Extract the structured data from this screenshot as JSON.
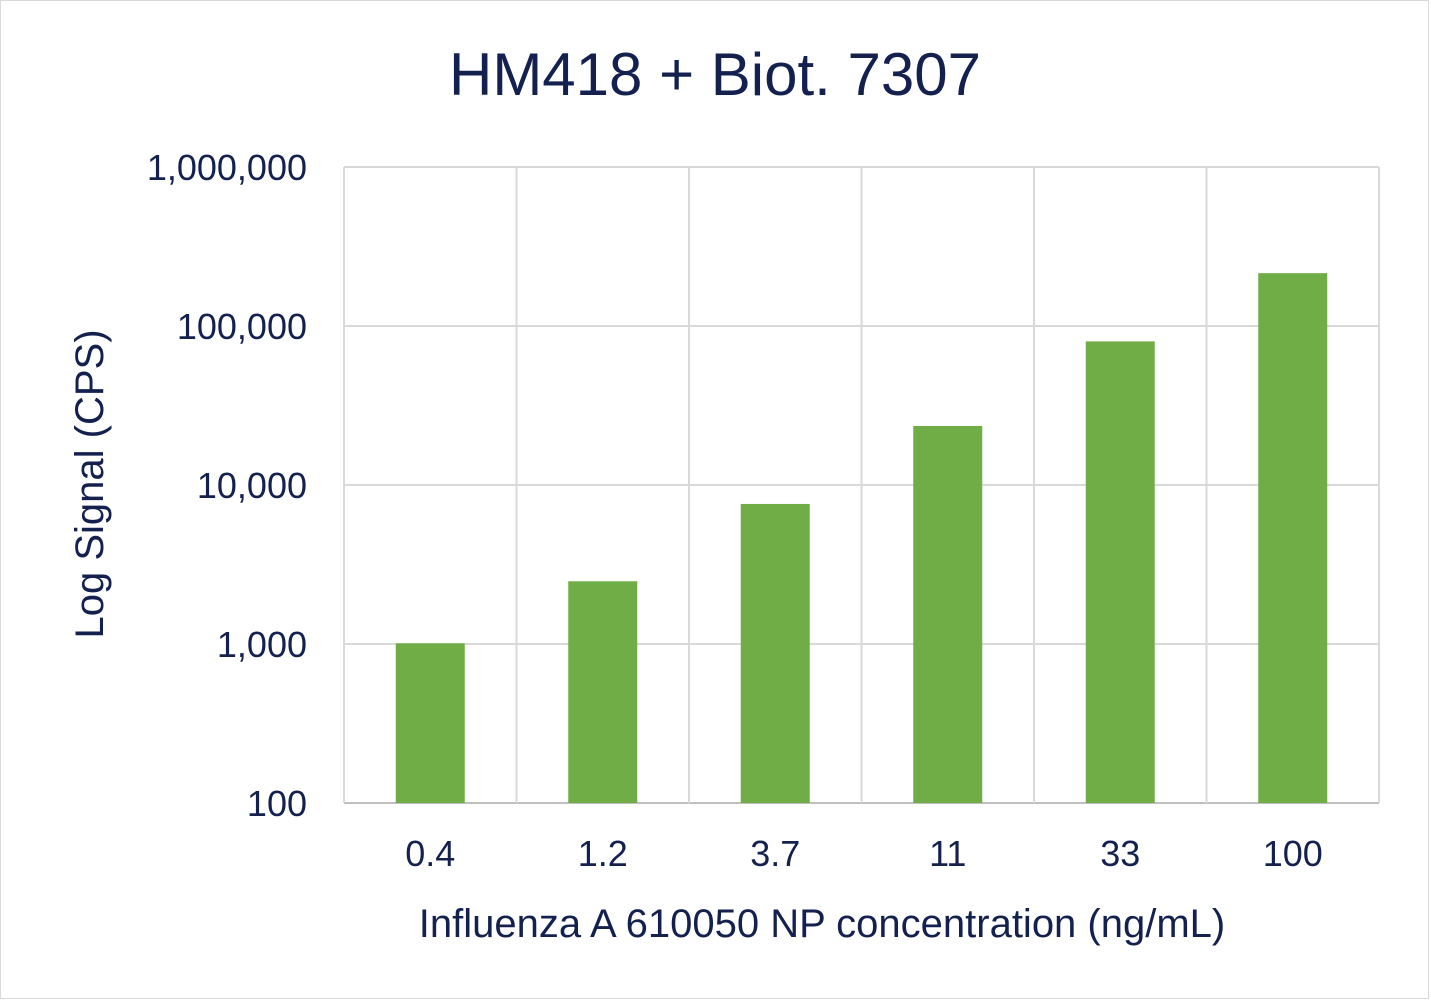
{
  "chart_data": {
    "type": "bar",
    "title": "HM418 + Biot. 7307",
    "xlabel": "Influenza A 610050 NP concentration (ng/mL)",
    "ylabel": "Log Signal (CPS)",
    "categories": [
      "0.4",
      "1.2",
      "3.7",
      "11",
      "33",
      "100"
    ],
    "values": [
      1010,
      2480,
      7600,
      23500,
      80000,
      215000
    ],
    "y_scale": "log",
    "ylim": [
      100,
      1000000
    ],
    "y_ticks": [
      100,
      1000,
      10000,
      100000,
      1000000
    ],
    "y_tick_labels": [
      "100",
      "1,000",
      "10,000",
      "100,000",
      "1,000,000"
    ],
    "grid": true,
    "legend": "none",
    "bar_color": "#70ad47",
    "grid_color": "#d9d9d9",
    "text_color": "#14214f"
  }
}
